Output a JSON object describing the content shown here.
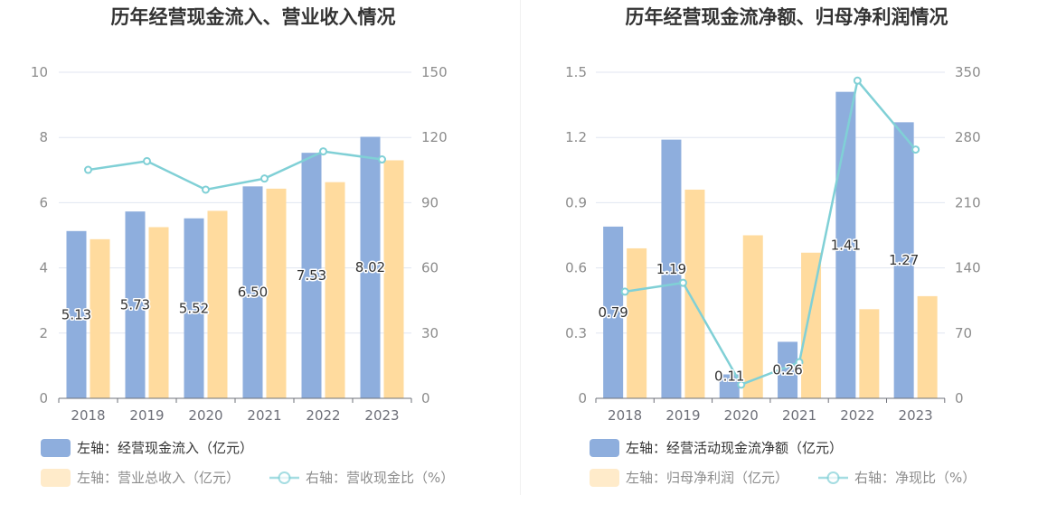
{
  "colors": {
    "bar_a": "#8eaedd",
    "bar_b": "#ffdb9e",
    "line": "#80d0d6",
    "grid": "#e0e6f1",
    "axis": "#6e7079"
  },
  "charts": [
    {
      "title": "历年经营现金流入、营业收入情况",
      "legend": {
        "a": "左轴：经营现金流入（亿元）",
        "b": "左轴：营业总收入（亿元）",
        "line": "右轴：营收现金比（%）"
      }
    },
    {
      "title": "历年经营现金流净额、归母净利润情况",
      "legend": {
        "a": "左轴：经营活动现金流净额（亿元）",
        "b": "左轴：归母净利润（亿元）",
        "line": "右轴：净现比（%）"
      }
    }
  ],
  "chart_data": [
    {
      "type": "bar",
      "title": "历年经营现金流入、营业收入情况",
      "categories": [
        "2018",
        "2019",
        "2020",
        "2021",
        "2022",
        "2023"
      ],
      "left_axis": {
        "ylim": [
          0,
          10
        ],
        "ticks": [
          "0",
          "2",
          "4",
          "6",
          "8",
          "10"
        ]
      },
      "right_axis": {
        "ylim": [
          0,
          150
        ],
        "ticks": [
          "0",
          "30",
          "60",
          "90",
          "120",
          "150"
        ]
      },
      "grid": true,
      "legend_position": "bottom-left",
      "series": [
        {
          "name": "左轴：经营现金流入（亿元）",
          "type": "bar",
          "axis": "left",
          "values": [
            5.13,
            5.73,
            5.52,
            6.5,
            7.53,
            8.02
          ],
          "labels": [
            "5.13",
            "5.73",
            "5.52",
            "6.50",
            "7.53",
            "8.02"
          ]
        },
        {
          "name": "左轴：营业总收入（亿元）",
          "type": "bar",
          "axis": "left",
          "values": [
            4.88,
            5.25,
            5.75,
            6.43,
            6.63,
            7.3
          ]
        },
        {
          "name": "右轴：营收现金比（%）",
          "type": "line",
          "axis": "right",
          "values": [
            105.1,
            109.1,
            96.0,
            101.1,
            113.6,
            109.9
          ]
        }
      ]
    },
    {
      "type": "bar",
      "title": "历年经营现金流净额、归母净利润情况",
      "categories": [
        "2018",
        "2019",
        "2020",
        "2021",
        "2022",
        "2023"
      ],
      "left_axis": {
        "ylim": [
          0,
          1.5
        ],
        "ticks": [
          "0",
          "0.3",
          "0.6",
          "0.9",
          "1.2",
          "1.5"
        ]
      },
      "right_axis": {
        "ylim": [
          0,
          350
        ],
        "ticks": [
          "0",
          "70",
          "140",
          "210",
          "280",
          "350"
        ]
      },
      "grid": true,
      "legend_position": "bottom-left",
      "series": [
        {
          "name": "左轴：经营活动现金流净额（亿元）",
          "type": "bar",
          "axis": "left",
          "values": [
            0.79,
            1.19,
            0.11,
            0.26,
            1.41,
            1.27
          ],
          "labels": [
            "0.79",
            "1.19",
            "0.11",
            "0.26",
            "1.41",
            "1.27"
          ]
        },
        {
          "name": "左轴：归母净利润（亿元）",
          "type": "bar",
          "axis": "left",
          "values": [
            0.69,
            0.96,
            0.75,
            0.67,
            0.41,
            0.47
          ]
        },
        {
          "name": "右轴：净现比（%）",
          "type": "line",
          "axis": "right",
          "values": [
            114.5,
            124.0,
            14.7,
            38.8,
            341.0,
            267.0
          ]
        }
      ]
    }
  ]
}
